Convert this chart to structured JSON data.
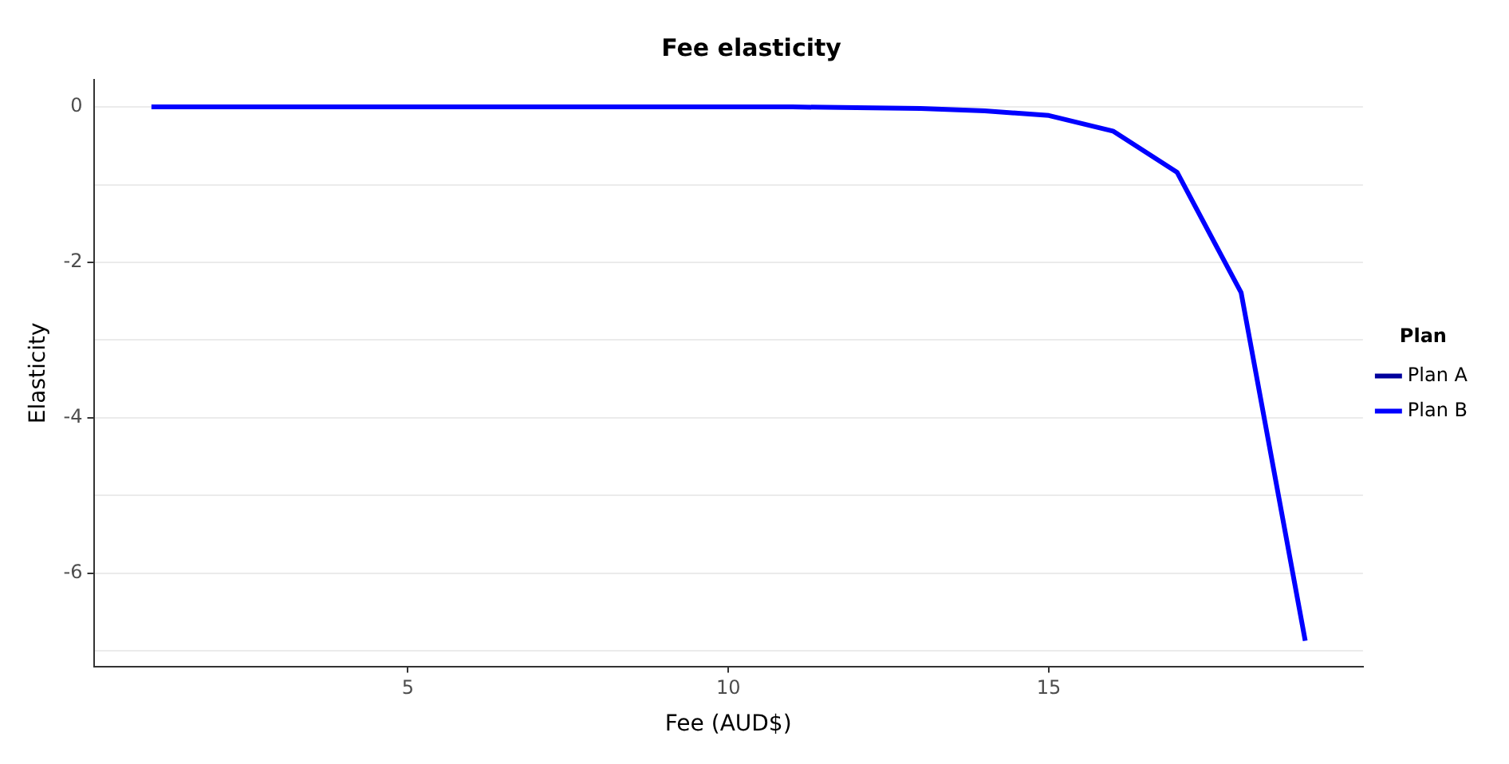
{
  "chart_data": {
    "type": "line",
    "title": "Fee elasticity",
    "xlabel": "Fee (AUD$)",
    "ylabel": "Elasticity",
    "legend_title": "Plan",
    "x": [
      1,
      2,
      3,
      4,
      5,
      6,
      7,
      8,
      9,
      10,
      11,
      12,
      13,
      14,
      15,
      16,
      17,
      18,
      19
    ],
    "series": [
      {
        "name": "Plan A",
        "color": "#00009c",
        "values": [
          null,
          null,
          null,
          null,
          null,
          null,
          null,
          null,
          null,
          null,
          null,
          null,
          null,
          null,
          null,
          null,
          null,
          null,
          null
        ]
      },
      {
        "name": "Plan B",
        "color": "#0000ff",
        "values": [
          0,
          0,
          0,
          0,
          0,
          0,
          0,
          0,
          0,
          0,
          0,
          -0.01,
          -0.02,
          -0.05,
          -0.11,
          -0.31,
          -0.84,
          -2.39,
          -6.87
        ]
      }
    ],
    "xlim": [
      0.1,
      19.9
    ],
    "xticks": [
      5,
      10,
      15
    ],
    "ylim": [
      -7.2,
      0.35
    ],
    "yticks": [
      {
        "value": -7,
        "label": null
      },
      -6,
      {
        "value": -5,
        "label": null
      },
      -4,
      {
        "value": -3,
        "label": null
      },
      -2,
      {
        "value": -1,
        "label": null
      },
      0
    ],
    "grid": "y",
    "legend": "right",
    "marker": "none",
    "line_style": "solid"
  }
}
